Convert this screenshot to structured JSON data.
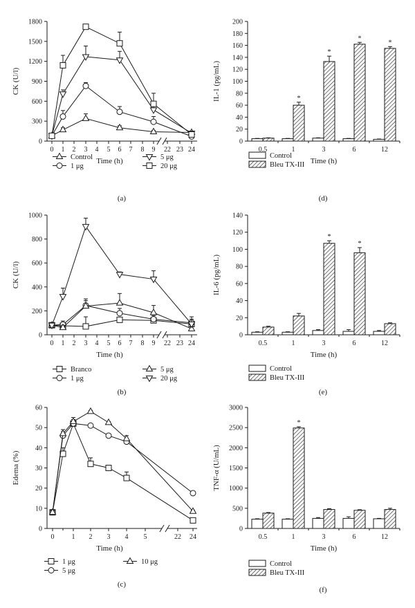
{
  "chart_data": [
    {
      "id": "a",
      "panel_label": "(a)",
      "type": "line",
      "ylabel": "CK (U/l)",
      "xlabel": "Time (h)",
      "ylim": [
        0,
        1800
      ],
      "yticks": [
        "0",
        "300",
        "600",
        "900",
        "1200",
        "1500",
        "1800"
      ],
      "xticks": [
        "0",
        "1",
        "2",
        "3",
        "4",
        "5",
        "6",
        "7",
        "8",
        "9",
        "22",
        "23",
        "24"
      ],
      "legend": [
        {
          "name": "Control",
          "marker": "triangle-up"
        },
        {
          "name": "5 μg",
          "marker": "triangle-down"
        },
        {
          "name": "1 μg",
          "marker": "circle"
        },
        {
          "name": "20 μg",
          "marker": "square"
        }
      ],
      "series": [
        {
          "name": "Control",
          "marker": "triangle-up",
          "x": [
            0,
            1,
            3,
            6,
            9,
            24
          ],
          "y": [
            80,
            170,
            340,
            200,
            140,
            130
          ],
          "err": [
            0,
            30,
            70,
            30,
            20,
            20
          ]
        },
        {
          "name": "1 μg",
          "marker": "circle",
          "x": [
            0,
            1,
            3,
            6,
            9,
            24
          ],
          "y": [
            80,
            370,
            830,
            440,
            290,
            70
          ],
          "err": [
            0,
            90,
            50,
            80,
            80,
            30
          ]
        },
        {
          "name": "5 μg",
          "marker": "triangle-down",
          "x": [
            0,
            1,
            3,
            6,
            9,
            24
          ],
          "y": [
            80,
            710,
            1270,
            1220,
            470,
            120
          ],
          "err": [
            0,
            60,
            160,
            130,
            100,
            20
          ]
        },
        {
          "name": "20 μg",
          "marker": "square",
          "x": [
            0,
            1,
            3,
            6,
            9,
            24
          ],
          "y": [
            80,
            1140,
            1720,
            1470,
            560,
            100
          ],
          "err": [
            0,
            150,
            0,
            170,
            160,
            30
          ]
        }
      ]
    },
    {
      "id": "b",
      "panel_label": "(b)",
      "type": "line",
      "ylabel": "CK (U/l)",
      "xlabel": "Time (h)",
      "ylim": [
        0,
        1000
      ],
      "yticks": [
        "0",
        "200",
        "400",
        "600",
        "800",
        "1000"
      ],
      "xticks": [
        "0",
        "1",
        "2",
        "3",
        "4",
        "5",
        "6",
        "7",
        "8",
        "9",
        "22",
        "23",
        "24"
      ],
      "legend": [
        {
          "name": "Branco",
          "marker": "square"
        },
        {
          "name": "5 μg",
          "marker": "triangle-up"
        },
        {
          "name": "1 μg",
          "marker": "circle"
        },
        {
          "name": "20 μg",
          "marker": "triangle-down"
        }
      ],
      "series": [
        {
          "name": "Branco",
          "marker": "square",
          "x": [
            0,
            1,
            3,
            6,
            9,
            24
          ],
          "y": [
            80,
            75,
            70,
            125,
            120,
            90
          ],
          "err": [
            0,
            20,
            80,
            20,
            20,
            30
          ]
        },
        {
          "name": "1 μg",
          "marker": "circle",
          "x": [
            0,
            1,
            3,
            6,
            9,
            24
          ],
          "y": [
            80,
            85,
            245,
            180,
            130,
            100
          ],
          "err": [
            0,
            30,
            40,
            40,
            30,
            30
          ]
        },
        {
          "name": "5 μg",
          "marker": "triangle-up",
          "x": [
            0,
            1,
            3,
            6,
            9,
            24
          ],
          "y": [
            80,
            60,
            240,
            265,
            185,
            50
          ],
          "err": [
            0,
            20,
            60,
            80,
            60,
            20
          ]
        },
        {
          "name": "20 μg",
          "marker": "triangle-down",
          "x": [
            0,
            1,
            3,
            6,
            9,
            24
          ],
          "y": [
            80,
            320,
            905,
            505,
            465,
            90
          ],
          "err": [
            0,
            70,
            70,
            20,
            70,
            60
          ]
        }
      ]
    },
    {
      "id": "c",
      "panel_label": "(c)",
      "type": "line",
      "ylabel": "Edema (%)",
      "xlabel": "Time (h)",
      "ylim": [
        0,
        60
      ],
      "yticks": [
        "0",
        "10",
        "20",
        "30",
        "40",
        "50",
        "60"
      ],
      "xticks": [
        "0",
        "1",
        "2",
        "3",
        "4",
        "5",
        "22",
        "24"
      ],
      "legend": [
        {
          "name": "1 μg",
          "marker": "square"
        },
        {
          "name": "10 μg",
          "marker": "triangle-up"
        },
        {
          "name": "5 μg",
          "marker": "circle"
        }
      ],
      "series": [
        {
          "name": "1 μg",
          "marker": "square",
          "x": [
            0,
            0.5,
            1,
            2,
            3,
            4,
            24
          ],
          "y": [
            8,
            37,
            52,
            32,
            30,
            25,
            4
          ],
          "err": [
            1,
            3,
            2,
            3,
            1,
            3,
            0.5
          ]
        },
        {
          "name": "5 μg",
          "marker": "circle",
          "x": [
            0,
            0.5,
            1,
            2,
            3,
            4,
            24
          ],
          "y": [
            8,
            46,
            52,
            51,
            46,
            43,
            17.5
          ],
          "err": [
            1,
            2,
            2,
            0.5,
            0.5,
            1.5,
            0.5
          ]
        },
        {
          "name": "10 μg",
          "marker": "triangle-up",
          "x": [
            0,
            0.5,
            1,
            2,
            3,
            4,
            24
          ],
          "y": [
            8,
            47,
            53,
            58,
            52.5,
            44.5,
            8.5
          ],
          "err": [
            1,
            2,
            2,
            0.5,
            0.5,
            1.5,
            0.5
          ]
        }
      ]
    },
    {
      "id": "d",
      "panel_label": "(d)",
      "type": "bar",
      "ylabel": "IL-1 (pg/mL)",
      "xlabel": "Time (h)",
      "ylim": [
        0,
        200
      ],
      "yticks": [
        "0",
        "20",
        "40",
        "60",
        "80",
        "100",
        "120",
        "140",
        "160",
        "180",
        "200"
      ],
      "categories": [
        "0.5",
        "1",
        "3",
        "6",
        "12"
      ],
      "significance": [
        "",
        "*",
        "*",
        "*",
        "*"
      ],
      "series": [
        {
          "name": "Control",
          "fill": "open",
          "values": [
            4,
            4,
            5,
            4,
            3
          ],
          "err": [
            0.5,
            0.5,
            0.5,
            0.5,
            0.5
          ]
        },
        {
          "name": "Bleu TX-III",
          "fill": "hatched",
          "values": [
            5,
            60,
            133,
            162,
            155
          ],
          "err": [
            0.5,
            5,
            9,
            3,
            3
          ]
        }
      ]
    },
    {
      "id": "e",
      "panel_label": "(e)",
      "type": "bar",
      "ylabel": "IL-6 (pg/mL)",
      "xlabel": "Time (h)",
      "ylim": [
        0,
        140
      ],
      "yticks": [
        "0",
        "20",
        "40",
        "60",
        "80",
        "100",
        "120",
        "140"
      ],
      "categories": [
        "0.5",
        "1",
        "3",
        "6",
        "12"
      ],
      "significance": [
        "",
        "",
        "*",
        "*",
        ""
      ],
      "series": [
        {
          "name": "Control",
          "fill": "open",
          "values": [
            3,
            3,
            5,
            4,
            4
          ],
          "err": [
            0.5,
            0.5,
            1,
            2,
            1
          ]
        },
        {
          "name": "Bleu TX-III",
          "fill": "hatched",
          "values": [
            9,
            22,
            107,
            96,
            13
          ],
          "err": [
            1,
            3,
            3,
            6,
            1
          ]
        }
      ]
    },
    {
      "id": "f",
      "panel_label": "(f)",
      "type": "bar",
      "ylabel": "TNF-α (U/mL)",
      "xlabel": "Time (h)",
      "ylim": [
        0,
        3000
      ],
      "yticks": [
        "0",
        "500",
        "1000",
        "1500",
        "2000",
        "2500",
        "3000"
      ],
      "categories": [
        "0.5",
        "1",
        "3",
        "6",
        "12"
      ],
      "significance": [
        "",
        "*",
        "",
        "",
        ""
      ],
      "series": [
        {
          "name": "Control",
          "fill": "open",
          "values": [
            230,
            230,
            250,
            250,
            240
          ],
          "err": [
            10,
            10,
            20,
            40,
            10
          ]
        },
        {
          "name": "Bleu TX-III",
          "fill": "hatched",
          "values": [
            380,
            2490,
            470,
            450,
            470
          ],
          "err": [
            15,
            30,
            20,
            15,
            30
          ]
        }
      ]
    }
  ]
}
